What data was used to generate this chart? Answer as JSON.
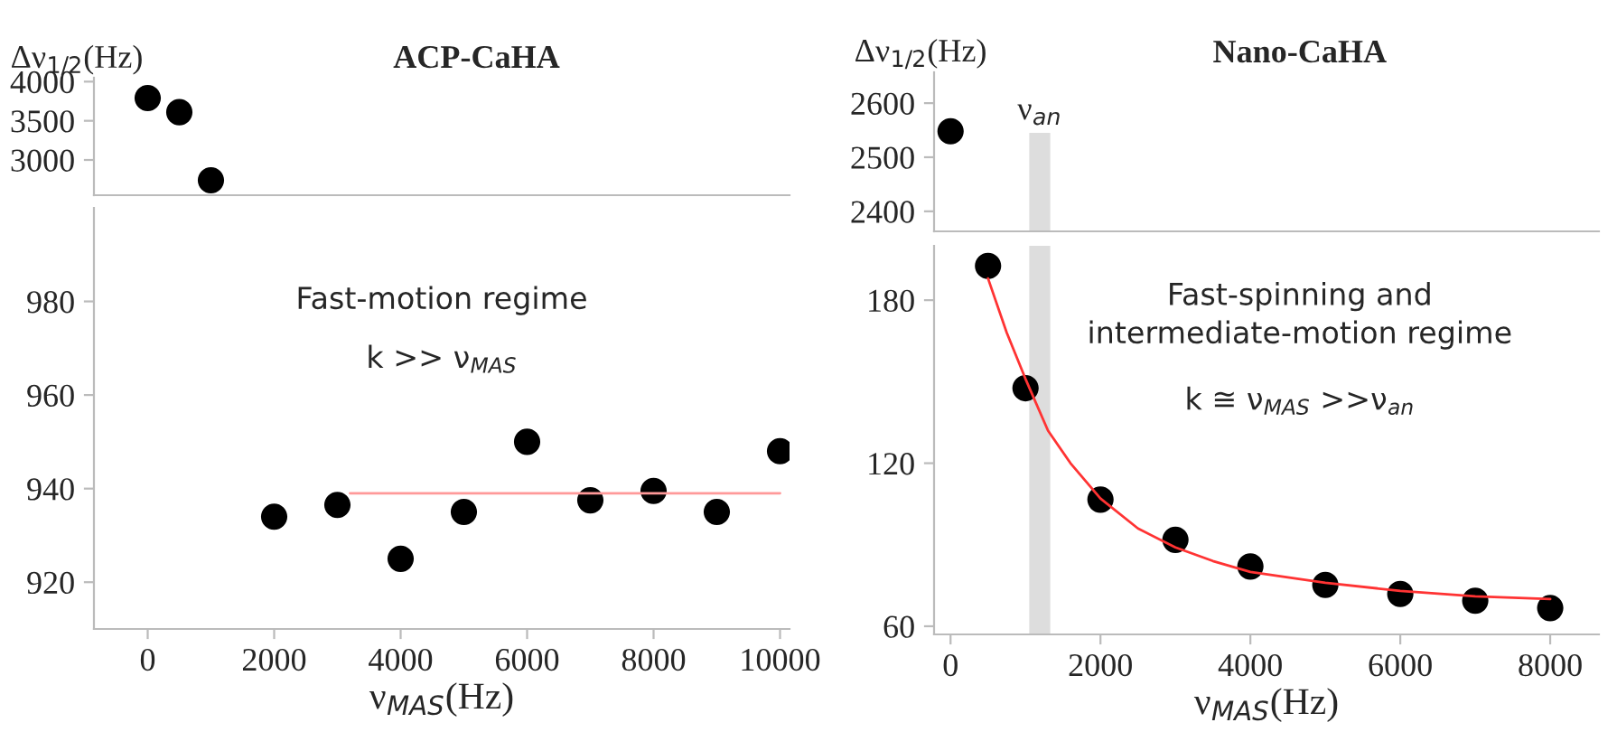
{
  "chart_data": [
    {
      "type": "scatter",
      "title": "ACP-CaHA",
      "ylabel": "Δν$_{1/2}$(Hz)",
      "xlim": [
        -850,
        10150
      ],
      "xticks": [
        0,
        2000,
        4000,
        6000,
        8000,
        10000
      ],
      "ylim": [
        2550,
        4050
      ],
      "yticks": [
        3000,
        3500,
        4000
      ],
      "tick_labels": "y",
      "grid": false,
      "legend": false,
      "marker": "circle",
      "series": [
        {
          "color": "#000000",
          "x": [
            0,
            500,
            1000
          ],
          "values": [
            3790,
            3610,
            2740
          ]
        }
      ]
    },
    {
      "type": "scatter",
      "xlabel": "ν$_{MAS}$(Hz)",
      "xlim": [
        -850,
        10150
      ],
      "xticks": [
        0,
        2000,
        4000,
        6000,
        8000,
        10000
      ],
      "ylim": [
        910,
        1000
      ],
      "yticks": [
        920,
        940,
        960,
        980
      ],
      "grid": false,
      "legend": false,
      "marker": "circle",
      "annotations": [
        "Fast-motion regime",
        "k >> ν$_{MAS}$"
      ],
      "series": [
        {
          "color": "#000000",
          "x": [
            2000,
            3000,
            4000,
            5000,
            6000,
            7000,
            8000,
            9000,
            10000
          ],
          "values": [
            934,
            936.5,
            925,
            935,
            950,
            937.5,
            939.5,
            935,
            948
          ]
        },
        {
          "type": "line",
          "marker": "none",
          "color": "#ff9999",
          "x": [
            3200,
            10000
          ],
          "values": [
            939,
            939
          ]
        }
      ]
    },
    {
      "type": "scatter",
      "title": "Nano-CaHA",
      "ylabel": "Δν$_{1/2}$(Hz)",
      "xlim": [
        -220,
        8650
      ],
      "xticks": [
        0,
        2000,
        4000,
        6000,
        8000
      ],
      "ylim": [
        2363,
        2657
      ],
      "yticks": [
        2400,
        2500,
        2600
      ],
      "tick_labels": "y",
      "grid": false,
      "legend": false,
      "marker": "circle",
      "bands": [
        {
          "axis": "x",
          "from": 1050,
          "to": 1330,
          "label": "ν$_{an}$",
          "color": "#dddddd"
        }
      ],
      "series": [
        {
          "color": "#000000",
          "x": [
            0
          ],
          "values": [
            2548
          ]
        }
      ]
    },
    {
      "type": "scatter",
      "xlabel": "ν$_{MAS}$(Hz)",
      "xlim": [
        -220,
        8650
      ],
      "xticks": [
        0,
        2000,
        4000,
        6000,
        8000
      ],
      "ylim": [
        57,
        200
      ],
      "yticks": [
        60,
        120,
        180
      ],
      "grid": false,
      "legend": false,
      "marker": "circle",
      "annotations": [
        "Fast-spinning and\nintermediate-motion regime",
        "k ≅ ν$_{MAS}$ >>ν$_{an}$"
      ],
      "bands": [
        {
          "axis": "x",
          "from": 1050,
          "to": 1330,
          "color": "#dddddd"
        }
      ],
      "series": [
        {
          "color": "#000000",
          "x": [
            500,
            1000,
            2000,
            3000,
            4000,
            5000,
            6000,
            7000,
            8000
          ],
          "values": [
            192.6,
            147.6,
            106.6,
            91.8,
            82,
            75.2,
            71.9,
            69.4,
            66.7
          ]
        },
        {
          "type": "line",
          "marker": "none",
          "color": "#ff3333",
          "x": [
            500,
            750,
            1000,
            1300,
            1600,
            2000,
            2500,
            3000,
            3500,
            4000,
            5000,
            6000,
            7000,
            8000
          ],
          "values": [
            188,
            168,
            151,
            132,
            120,
            107,
            96,
            89,
            84,
            80,
            76,
            73,
            71,
            70
          ]
        }
      ]
    }
  ]
}
